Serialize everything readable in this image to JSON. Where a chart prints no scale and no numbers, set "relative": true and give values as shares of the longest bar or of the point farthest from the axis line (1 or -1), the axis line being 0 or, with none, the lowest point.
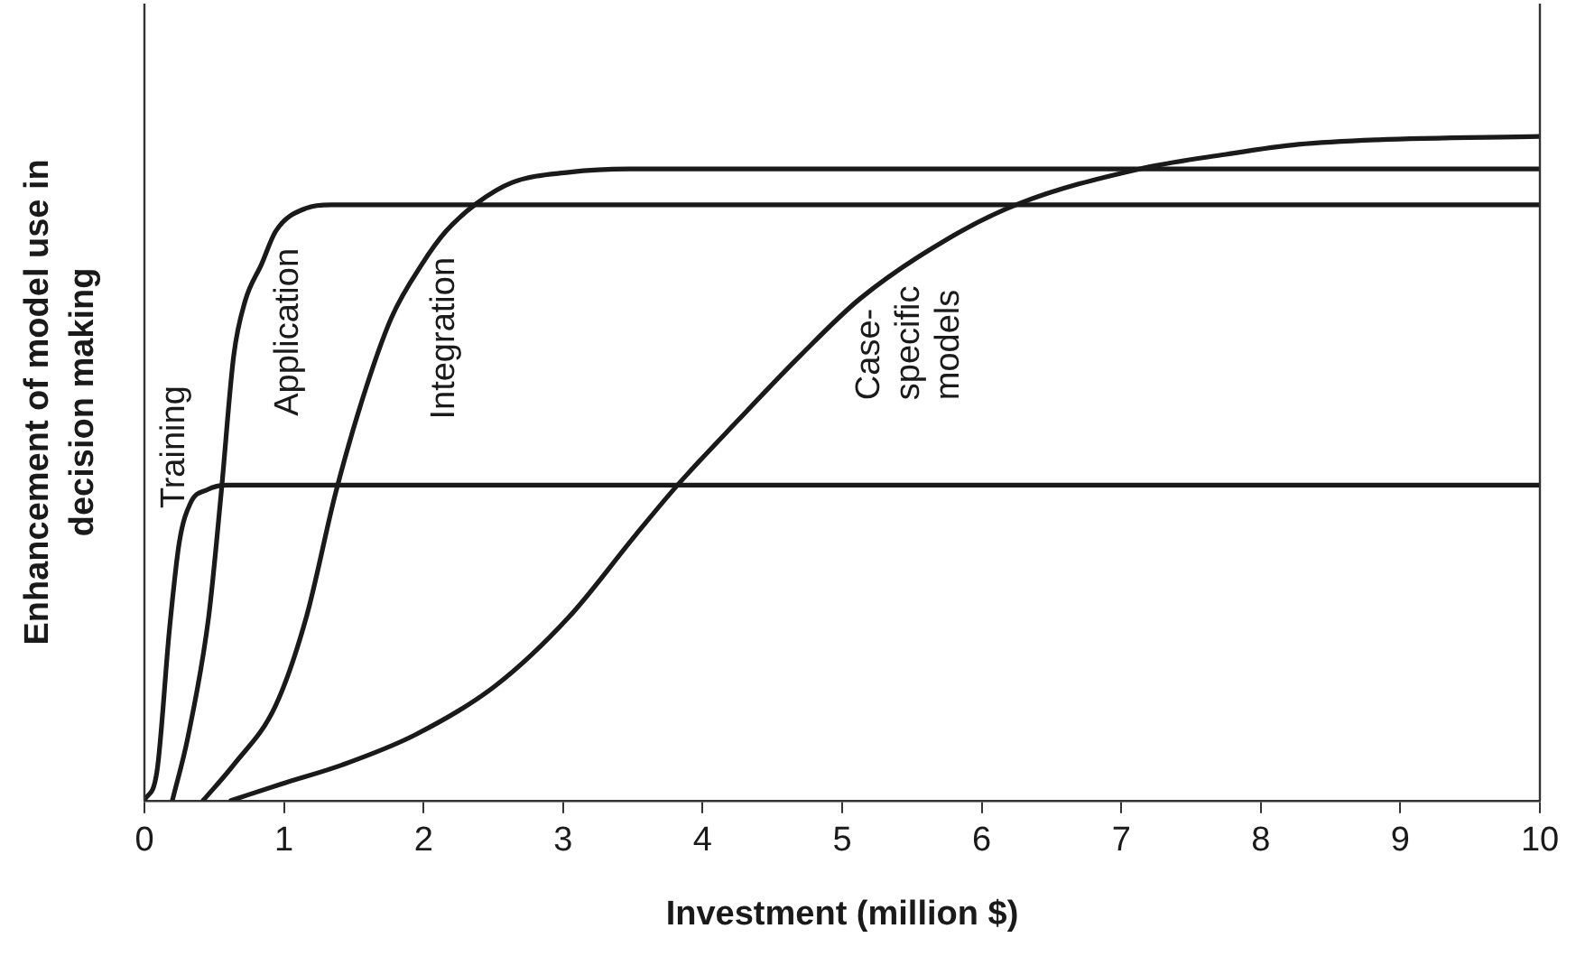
{
  "chart_data": {
    "type": "line",
    "relative": true,
    "xlabel": "Investment (million $)",
    "ylabel": "Enhancement of model use in decision making",
    "xlim": [
      0,
      10
    ],
    "xticks": [
      0,
      1,
      2,
      3,
      4,
      5,
      6,
      7,
      8,
      9,
      10
    ],
    "grid": false,
    "legend": false,
    "marker": "none",
    "line_style": "solid",
    "series": [
      {
        "name": "Training",
        "color": "#1a1a1a",
        "x": [
          0,
          0.09,
          0.18,
          0.25,
          0.33,
          0.45,
          0.59,
          10
        ],
        "values": [
          0,
          0.044,
          0.259,
          0.389,
          0.448,
          0.468,
          0.475,
          0.475
        ]
      },
      {
        "name": "Application",
        "color": "#1a1a1a",
        "x": [
          0.2,
          0.31,
          0.46,
          0.55,
          0.64,
          0.72,
          0.84,
          0.94,
          1.16,
          1.34,
          10
        ],
        "values": [
          0,
          0.094,
          0.276,
          0.463,
          0.67,
          0.751,
          0.808,
          0.857,
          0.892,
          0.897,
          0.897
        ]
      },
      {
        "name": "Integration",
        "color": "#1a1a1a",
        "x": [
          0.42,
          0.64,
          0.94,
          1.16,
          1.37,
          1.56,
          1.77,
          1.99,
          2.16,
          2.38,
          2.64,
          3.04,
          3.47,
          10
        ],
        "values": [
          0,
          0.054,
          0.143,
          0.276,
          0.463,
          0.603,
          0.727,
          0.808,
          0.857,
          0.899,
          0.931,
          0.946,
          0.951,
          0.951
        ]
      },
      {
        "name": "Case-specific models",
        "color": "#1a1a1a",
        "x": [
          0.62,
          0.98,
          1.42,
          1.94,
          2.51,
          3.04,
          3.52,
          3.82,
          4.26,
          4.7,
          5.13,
          5.75,
          6.27,
          7.13,
          7.75,
          8.27,
          8.84,
          10
        ],
        "values": [
          0,
          0.025,
          0.054,
          0.099,
          0.172,
          0.276,
          0.4,
          0.475,
          0.574,
          0.67,
          0.756,
          0.845,
          0.899,
          0.951,
          0.973,
          0.988,
          0.995,
          1
        ]
      }
    ]
  }
}
